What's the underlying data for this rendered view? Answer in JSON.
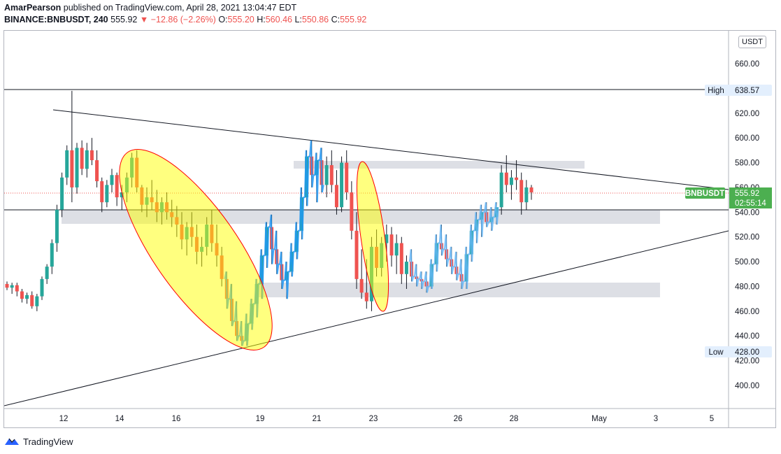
{
  "header": {
    "author": "AmarPearson",
    "published_text": "published on TradingView.com, April 28, 2021 13:04:47 EDT",
    "symbol": "BINANCE:BNBUSDT, 240",
    "last": "555.92",
    "change": "−12.86 (−2.26%)",
    "o_label": "O:",
    "o": "555.20",
    "h_label": "H:",
    "h": "560.46",
    "l_label": "L:",
    "l": "550.86",
    "c_label": "C:",
    "c": "555.92"
  },
  "colors": {
    "up": "#26a69a",
    "down": "#ef5350",
    "accent_green": "#4caf50",
    "zone": "#d1d4dc",
    "highlight": "#ffff00",
    "highlight_border": "#ff0000",
    "overlay_blue": "#2196f3"
  },
  "footer": {
    "brand": "TradingView"
  },
  "chart_data": {
    "type": "candlestick",
    "price_axis": {
      "unit": "USDT",
      "ticks": [
        "660.00",
        "640.00",
        "620.00",
        "600.00",
        "580.00",
        "560.00",
        "540.00",
        "520.00",
        "500.00",
        "480.00",
        "460.00",
        "440.00",
        "420.00",
        "400.00"
      ],
      "range": [
        383,
        673
      ]
    },
    "time_axis": {
      "labels": [
        "12",
        "14",
        "16",
        "19",
        "21",
        "23",
        "26",
        "28",
        "May",
        "3",
        "5"
      ]
    },
    "markers": {
      "high": {
        "label": "High",
        "value": "638.57"
      },
      "low": {
        "label": "Low",
        "value": "428.00"
      },
      "last": {
        "symbol": "BNBUSDT",
        "value": "555.92",
        "countdown": "02:55:14"
      }
    },
    "candles": [
      [
        482,
        484,
        477,
        479
      ],
      [
        479,
        483,
        474,
        481
      ],
      [
        481,
        483,
        472,
        476
      ],
      [
        476,
        478,
        467,
        470
      ],
      [
        470,
        475,
        466,
        473
      ],
      [
        473,
        476,
        462,
        464
      ],
      [
        464,
        474,
        460,
        472
      ],
      [
        472,
        488,
        469,
        486
      ],
      [
        486,
        498,
        482,
        496
      ],
      [
        496,
        518,
        490,
        515
      ],
      [
        515,
        546,
        508,
        542
      ],
      [
        542,
        572,
        536,
        568
      ],
      [
        568,
        594,
        562,
        590
      ],
      [
        590,
        638,
        548,
        560
      ],
      [
        560,
        596,
        555,
        592
      ],
      [
        592,
        598,
        570,
        575
      ],
      [
        575,
        596,
        568,
        590
      ],
      [
        590,
        600,
        578,
        582
      ],
      [
        582,
        590,
        560,
        565
      ],
      [
        565,
        568,
        540,
        548
      ],
      [
        548,
        566,
        544,
        562
      ],
      [
        562,
        575,
        556,
        570
      ],
      [
        570,
        572,
        545,
        552
      ],
      [
        552,
        562,
        542,
        556
      ],
      [
        556,
        572,
        548,
        568
      ],
      [
        568,
        588,
        560,
        584
      ],
      [
        584,
        590,
        556,
        560
      ],
      [
        560,
        562,
        540,
        546
      ],
      [
        546,
        560,
        536,
        552
      ],
      [
        552,
        566,
        542,
        548
      ],
      [
        548,
        558,
        532,
        540
      ],
      [
        540,
        552,
        530,
        548
      ],
      [
        548,
        556,
        534,
        540
      ],
      [
        540,
        550,
        528,
        536
      ],
      [
        536,
        545,
        520,
        530
      ],
      [
        530,
        540,
        510,
        518
      ],
      [
        518,
        532,
        505,
        528
      ],
      [
        528,
        540,
        512,
        520
      ],
      [
        520,
        530,
        498,
        508
      ],
      [
        508,
        520,
        496,
        512
      ],
      [
        512,
        536,
        505,
        530
      ],
      [
        530,
        542,
        508,
        515
      ],
      [
        515,
        530,
        496,
        505
      ],
      [
        505,
        512,
        480,
        486
      ],
      [
        486,
        492,
        462,
        470
      ],
      [
        470,
        482,
        448,
        452
      ],
      [
        452,
        468,
        436,
        440
      ],
      [
        440,
        452,
        432,
        436
      ],
      [
        436,
        458,
        432,
        450
      ],
      [
        450,
        470,
        445,
        466
      ],
      [
        466,
        486,
        455,
        482
      ],
      [
        482,
        510,
        470,
        505
      ],
      [
        505,
        532,
        495,
        528
      ],
      [
        528,
        538,
        498,
        510
      ],
      [
        510,
        525,
        490,
        498
      ],
      [
        498,
        508,
        478,
        485
      ],
      [
        485,
        500,
        470,
        492
      ],
      [
        492,
        515,
        488,
        508
      ],
      [
        508,
        532,
        502,
        525
      ],
      [
        525,
        560,
        518,
        552
      ],
      [
        552,
        590,
        545,
        585
      ],
      [
        585,
        598,
        560,
        570
      ],
      [
        570,
        588,
        548,
        582
      ],
      [
        582,
        592,
        556,
        562
      ],
      [
        562,
        585,
        552,
        578
      ],
      [
        578,
        590,
        556,
        562
      ],
      [
        562,
        574,
        538,
        544
      ],
      [
        544,
        585,
        540,
        580
      ],
      [
        580,
        590,
        550,
        556
      ],
      [
        556,
        565,
        518,
        525
      ],
      [
        525,
        540,
        478,
        486
      ],
      [
        486,
        510,
        470,
        475
      ],
      [
        475,
        502,
        462,
        468
      ],
      [
        468,
        520,
        460,
        512
      ],
      [
        512,
        526,
        488,
        495
      ],
      [
        495,
        520,
        488,
        515
      ],
      [
        515,
        530,
        500,
        522
      ],
      [
        522,
        528,
        496,
        505
      ],
      [
        505,
        522,
        490,
        515
      ],
      [
        515,
        520,
        482,
        490
      ],
      [
        490,
        505,
        478,
        500
      ],
      [
        500,
        510,
        484,
        488
      ],
      [
        488,
        498,
        480,
        486
      ],
      [
        486,
        492,
        478,
        484
      ],
      [
        484,
        492,
        475,
        480
      ],
      [
        480,
        502,
        478,
        498
      ],
      [
        498,
        522,
        492,
        515
      ],
      [
        515,
        530,
        505,
        510
      ],
      [
        510,
        522,
        496,
        502
      ],
      [
        502,
        512,
        490,
        496
      ],
      [
        496,
        508,
        485,
        490
      ],
      [
        490,
        502,
        478,
        484
      ],
      [
        484,
        512,
        478,
        506
      ],
      [
        506,
        530,
        500,
        525
      ],
      [
        525,
        540,
        515,
        534
      ],
      [
        534,
        546,
        520,
        540
      ],
      [
        540,
        548,
        528,
        532
      ],
      [
        532,
        544,
        525,
        536
      ],
      [
        536,
        548,
        530,
        544
      ],
      [
        544,
        578,
        538,
        572
      ],
      [
        572,
        586,
        556,
        562
      ],
      [
        562,
        574,
        550,
        568
      ],
      [
        568,
        582,
        558,
        566
      ],
      [
        566,
        572,
        538,
        548
      ],
      [
        548,
        566,
        542,
        560
      ],
      [
        560,
        562,
        550,
        556
      ]
    ],
    "annotations": [
      "horizontal line at 638.57",
      "horizontal line at 541",
      "descending trendline from ~622 to ~560",
      "ascending trendline from ~384 to ~524",
      "resistance zone 576-582",
      "support zone 532-541",
      "support zone 472-484"
    ]
  }
}
